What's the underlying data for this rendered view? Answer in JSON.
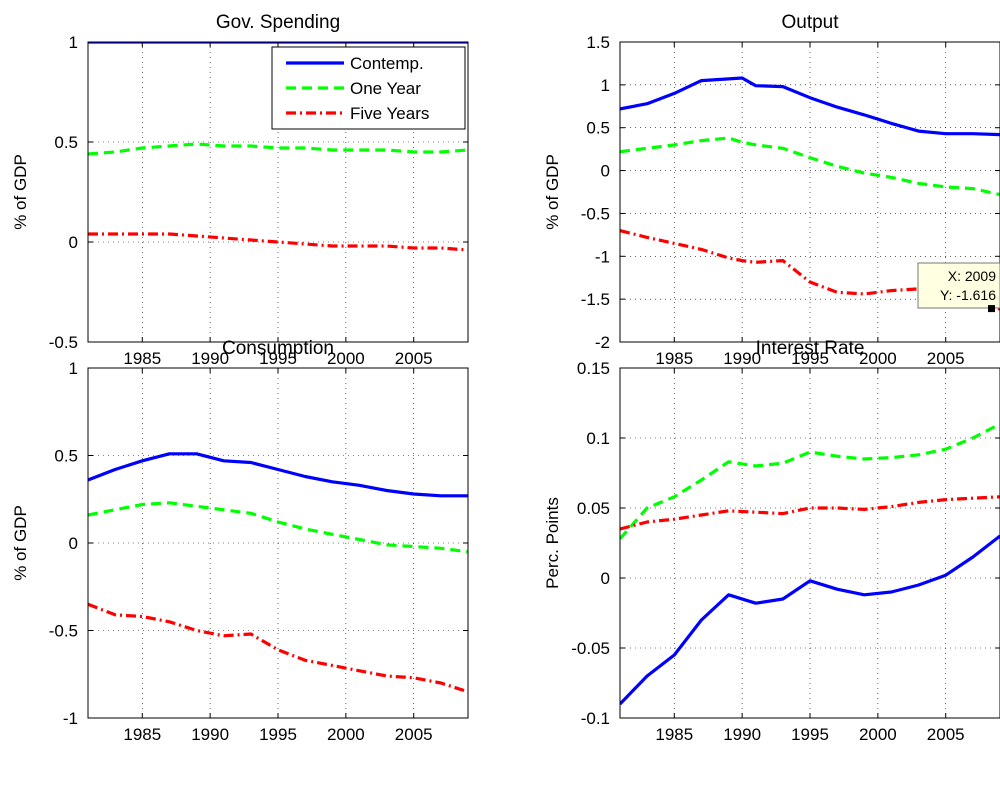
{
  "figure": {
    "legend": {
      "entries": [
        {
          "label": "Contemp.",
          "color": "#0000ff",
          "dash": "solid"
        },
        {
          "label": "One Year",
          "color": "#00ff00",
          "dash": "dashed"
        },
        {
          "label": "Five Years",
          "color": "#ff0000",
          "dash": "dashdot"
        }
      ],
      "placement": "top-right of first panel"
    },
    "datatip": {
      "panel": 1,
      "x": 2009,
      "y": -1.616,
      "x_label": "X: 2009",
      "y_label": "Y: -1.616"
    }
  },
  "chart_data": [
    {
      "type": "line",
      "title": "Gov. Spending",
      "xlabel": "",
      "ylabel": "% of GDP",
      "xlim": [
        1981,
        2009
      ],
      "ylim": [
        -0.5,
        1
      ],
      "xticks": [
        1985,
        1990,
        1995,
        2000,
        2005
      ],
      "yticks": [
        -0.5,
        0,
        0.5,
        1
      ],
      "ytick_labels": [
        "-0.5",
        "0",
        "0.5",
        "1"
      ],
      "grid": true,
      "x": [
        1981,
        1983,
        1985,
        1987,
        1989,
        1991,
        1993,
        1995,
        1997,
        1999,
        2001,
        2003,
        2005,
        2007,
        2009
      ],
      "series": [
        {
          "name": "Contemp.",
          "color": "#0000ff",
          "dash": "solid",
          "values": [
            1,
            1,
            1,
            1,
            1,
            1,
            1,
            1,
            1,
            1,
            1,
            1,
            1,
            1,
            1
          ]
        },
        {
          "name": "One Year",
          "color": "#00ff00",
          "dash": "dashed",
          "values": [
            0.44,
            0.45,
            0.47,
            0.48,
            0.49,
            0.48,
            0.48,
            0.47,
            0.47,
            0.46,
            0.46,
            0.46,
            0.45,
            0.45,
            0.46
          ]
        },
        {
          "name": "Five Years",
          "color": "#ff0000",
          "dash": "dashdot",
          "values": [
            0.04,
            0.04,
            0.04,
            0.04,
            0.03,
            0.02,
            0.01,
            0.0,
            -0.01,
            -0.02,
            -0.02,
            -0.02,
            -0.03,
            -0.03,
            -0.04
          ]
        }
      ]
    },
    {
      "type": "line",
      "title": "Output",
      "xlabel": "",
      "ylabel": "% of GDP",
      "xlim": [
        1981,
        2009
      ],
      "ylim": [
        -2,
        1.5
      ],
      "xticks": [
        1985,
        1990,
        1995,
        2000,
        2005
      ],
      "yticks": [
        -2,
        -1.5,
        -1,
        -0.5,
        0,
        0.5,
        1,
        1.5
      ],
      "ytick_labels": [
        "-2",
        "-1.5",
        "-1",
        "-0.5",
        "0",
        "0.5",
        "1",
        "1.5"
      ],
      "grid": true,
      "x": [
        1981,
        1983,
        1985,
        1987,
        1989,
        1990,
        1991,
        1993,
        1995,
        1997,
        1999,
        2001,
        2003,
        2005,
        2007,
        2009
      ],
      "series": [
        {
          "name": "Contemp.",
          "color": "#0000ff",
          "dash": "solid",
          "values": [
            0.72,
            0.78,
            0.9,
            1.05,
            1.07,
            1.08,
            0.99,
            0.98,
            0.85,
            0.74,
            0.65,
            0.55,
            0.46,
            0.43,
            0.43,
            0.42
          ]
        },
        {
          "name": "One Year",
          "color": "#00ff00",
          "dash": "dashed",
          "values": [
            0.22,
            0.26,
            0.3,
            0.35,
            0.38,
            0.33,
            0.3,
            0.26,
            0.15,
            0.05,
            -0.03,
            -0.08,
            -0.15,
            -0.19,
            -0.21,
            -0.28
          ]
        },
        {
          "name": "Five Years",
          "color": "#ff0000",
          "dash": "dashdot",
          "values": [
            -0.7,
            -0.78,
            -0.85,
            -0.92,
            -1.02,
            -1.05,
            -1.07,
            -1.05,
            -1.3,
            -1.42,
            -1.44,
            -1.4,
            -1.38,
            -1.45,
            -1.52,
            -1.616
          ]
        }
      ]
    },
    {
      "type": "line",
      "title": "Consumption",
      "xlabel": "",
      "ylabel": "% of GDP",
      "xlim": [
        1981,
        2009
      ],
      "ylim": [
        -1,
        1
      ],
      "xticks": [
        1985,
        1990,
        1995,
        2000,
        2005
      ],
      "yticks": [
        -1,
        -0.5,
        0,
        0.5,
        1
      ],
      "ytick_labels": [
        "-1",
        "-0.5",
        "0",
        "0.5",
        "1"
      ],
      "grid": true,
      "x": [
        1981,
        1983,
        1985,
        1987,
        1989,
        1991,
        1993,
        1995,
        1997,
        1999,
        2001,
        2003,
        2005,
        2007,
        2009
      ],
      "series": [
        {
          "name": "Contemp.",
          "color": "#0000ff",
          "dash": "solid",
          "values": [
            0.36,
            0.42,
            0.47,
            0.51,
            0.51,
            0.47,
            0.46,
            0.42,
            0.38,
            0.35,
            0.33,
            0.3,
            0.28,
            0.27,
            0.27
          ]
        },
        {
          "name": "One Year",
          "color": "#00ff00",
          "dash": "dashed",
          "values": [
            0.16,
            0.19,
            0.22,
            0.23,
            0.21,
            0.19,
            0.17,
            0.12,
            0.08,
            0.05,
            0.02,
            -0.01,
            -0.02,
            -0.03,
            -0.05
          ]
        },
        {
          "name": "Five Years",
          "color": "#ff0000",
          "dash": "dashdot",
          "values": [
            -0.35,
            -0.41,
            -0.42,
            -0.45,
            -0.5,
            -0.53,
            -0.52,
            -0.61,
            -0.67,
            -0.7,
            -0.73,
            -0.76,
            -0.77,
            -0.8,
            -0.85
          ]
        }
      ]
    },
    {
      "type": "line",
      "title": "Interest Rate",
      "xlabel": "",
      "ylabel": "Perc. Points",
      "xlim": [
        1981,
        2009
      ],
      "ylim": [
        -0.1,
        0.15
      ],
      "xticks": [
        1985,
        1990,
        1995,
        2000,
        2005
      ],
      "yticks": [
        -0.1,
        -0.05,
        0,
        0.05,
        0.1,
        0.15
      ],
      "ytick_labels": [
        "-0.1",
        "-0.05",
        "0",
        "0.05",
        "0.1",
        "0.15"
      ],
      "grid": true,
      "x": [
        1981,
        1983,
        1985,
        1987,
        1989,
        1991,
        1993,
        1995,
        1997,
        1999,
        2001,
        2003,
        2005,
        2007,
        2009
      ],
      "series": [
        {
          "name": "Contemp.",
          "color": "#0000ff",
          "dash": "solid",
          "values": [
            -0.09,
            -0.07,
            -0.055,
            -0.03,
            -0.012,
            -0.018,
            -0.015,
            -0.002,
            -0.008,
            -0.012,
            -0.01,
            -0.005,
            0.002,
            0.015,
            0.03
          ]
        },
        {
          "name": "One Year",
          "color": "#00ff00",
          "dash": "dashed",
          "values": [
            0.028,
            0.05,
            0.058,
            0.07,
            0.083,
            0.08,
            0.082,
            0.09,
            0.087,
            0.085,
            0.086,
            0.088,
            0.092,
            0.1,
            0.11
          ]
        },
        {
          "name": "Five Years",
          "color": "#ff0000",
          "dash": "dashdot",
          "values": [
            0.035,
            0.04,
            0.042,
            0.045,
            0.048,
            0.047,
            0.046,
            0.05,
            0.05,
            0.049,
            0.051,
            0.054,
            0.056,
            0.057,
            0.058
          ]
        }
      ]
    }
  ]
}
